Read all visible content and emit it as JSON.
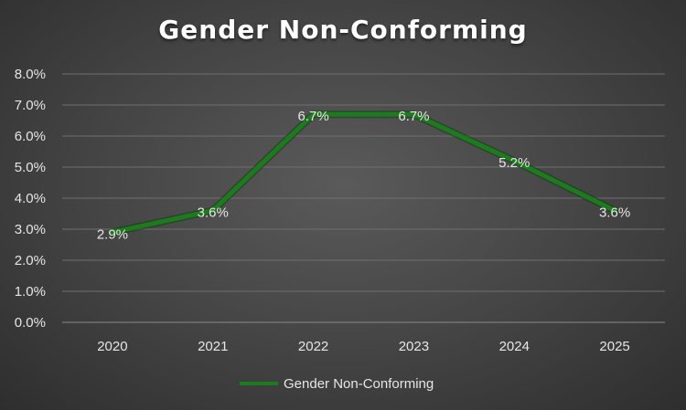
{
  "chart_data": {
    "type": "line",
    "title": "Gender Non-Conforming",
    "categories": [
      "2020",
      "2021",
      "2022",
      "2023",
      "2024",
      "2025"
    ],
    "series": [
      {
        "name": "Gender Non-Conforming",
        "values": [
          2.9,
          3.6,
          6.7,
          6.7,
          5.2,
          3.6
        ],
        "color": "#1e7a1e"
      }
    ],
    "data_labels": [
      "2.9%",
      "3.6%",
      "6.7%",
      "6.7%",
      "5.2%",
      "3.6%"
    ],
    "y_tick_labels": [
      "0.0%",
      "1.0%",
      "2.0%",
      "3.0%",
      "4.0%",
      "5.0%",
      "6.0%",
      "7.0%",
      "8.0%"
    ],
    "ylim": [
      0,
      8
    ],
    "grid": true,
    "legend_position": "bottom",
    "xlabel": "",
    "ylabel": ""
  }
}
